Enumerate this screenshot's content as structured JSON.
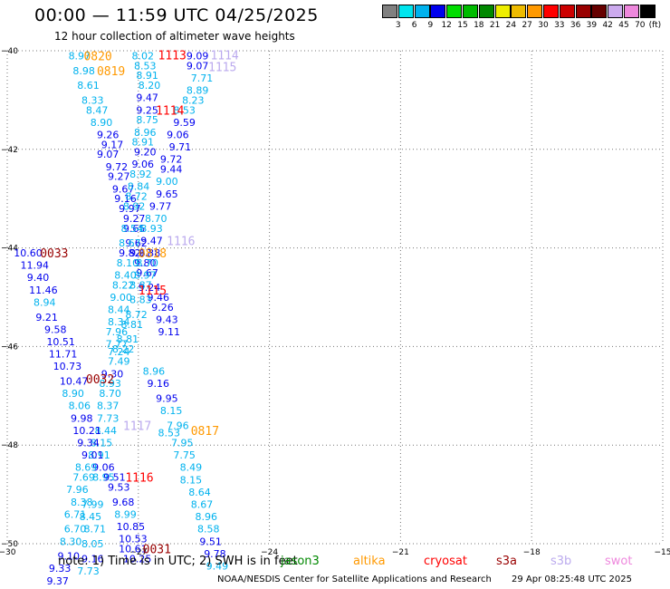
{
  "title": "00:00 — 11:59 UTC 04/25/2025",
  "subtitle": "12 hour collection of altimeter wave heights",
  "note": "note:  1) Time is in UTC;  2) SWH is in feet",
  "footer": "NOAA/NESDIS Center for Satellite Applications and Research",
  "timestamp": "29 Apr 08:25:48 UTC 2025",
  "colorbar": {
    "labels": [
      "3",
      "6",
      "9",
      "12",
      "15",
      "18",
      "21",
      "24",
      "27",
      "30",
      "33",
      "36",
      "39",
      "42",
      "45",
      "70"
    ],
    "unit": "(ft)",
    "colors": [
      "#808080",
      "#00e5ee",
      "#00b2ee",
      "#0000ee",
      "#00dd00",
      "#00bb00",
      "#008800",
      "#eeee00",
      "#eebb00",
      "#ff9900",
      "#ff0000",
      "#cc0000",
      "#990000",
      "#660000",
      "#ccaaee",
      "#ee88dd",
      "#000000"
    ]
  },
  "map": {
    "x_range": [
      -30,
      -15
    ],
    "y_range": [
      -50,
      -40
    ],
    "x_ticks": [
      -30,
      -27,
      -24,
      -21,
      -18,
      -15
    ],
    "y_ticks": [
      -40,
      -42,
      -44,
      -46,
      -48,
      -50
    ],
    "x_tick_labels": [
      "−30",
      "−27",
      "−24",
      "−21",
      "−18",
      "−15"
    ],
    "y_tick_labels": [
      "−40",
      "−42",
      "−44",
      "−46",
      "−48",
      "−50"
    ]
  },
  "satellites": [
    {
      "name": "jason3",
      "color": "#008800"
    },
    {
      "name": "altika",
      "color": "#ff9900"
    },
    {
      "name": "cryosat",
      "color": "#ff0000"
    },
    {
      "name": "s3a",
      "color": "#990000"
    },
    {
      "name": "s3b",
      "color": "#bbaaee"
    },
    {
      "name": "swot",
      "color": "#ee88dd"
    }
  ],
  "points": [
    {
      "lon": -28.6,
      "lat": -40.1,
      "v": "8.97",
      "c": "#00b2ee"
    },
    {
      "lon": -28.5,
      "lat": -40.4,
      "v": "8.98",
      "c": "#00b2ee"
    },
    {
      "lon": -28.4,
      "lat": -40.7,
      "v": "8.61",
      "c": "#00b2ee"
    },
    {
      "lon": -28.3,
      "lat": -41.0,
      "v": "8.33",
      "c": "#00b2ee"
    },
    {
      "lon": -28.2,
      "lat": -41.2,
      "v": "8.47",
      "c": "#00b2ee"
    },
    {
      "lon": -28.1,
      "lat": -41.45,
      "v": "8.90",
      "c": "#00b2ee"
    },
    {
      "lon": -27.95,
      "lat": -41.7,
      "v": "9.26",
      "c": "#0000ee"
    },
    {
      "lon": -27.85,
      "lat": -41.9,
      "v": "9.17",
      "c": "#0000ee"
    },
    {
      "lon": -27.95,
      "lat": -42.1,
      "v": "9.07",
      "c": "#0000ee"
    },
    {
      "lon": -27.75,
      "lat": -42.35,
      "v": "9.72",
      "c": "#0000ee"
    },
    {
      "lon": -27.7,
      "lat": -42.55,
      "v": "9.27",
      "c": "#0000ee"
    },
    {
      "lon": -27.6,
      "lat": -42.8,
      "v": "9.67",
      "c": "#0000ee"
    },
    {
      "lon": -27.55,
      "lat": -43.0,
      "v": "9.16",
      "c": "#0000ee"
    },
    {
      "lon": -27.45,
      "lat": -43.2,
      "v": "9.97",
      "c": "#0000ee"
    },
    {
      "lon": -27.35,
      "lat": -43.6,
      "v": "9.65",
      "c": "#0000ee"
    },
    {
      "lon": -27.3,
      "lat": -43.9,
      "v": "9.62",
      "c": "#0000ee"
    },
    {
      "lon": -27.2,
      "lat": -44.1,
      "v": "9.67",
      "c": "#0000ee"
    },
    {
      "lon": -27.1,
      "lat": -44.3,
      "v": "9.80",
      "c": "#0000ee"
    },
    {
      "lon": -27.05,
      "lat": -44.5,
      "v": "9.67",
      "c": "#0000ee"
    },
    {
      "lon": -27.0,
      "lat": -44.8,
      "v": "9.24",
      "c": "#0000ee"
    },
    {
      "lon": -26.8,
      "lat": -45.0,
      "v": "9.46",
      "c": "#0000ee"
    },
    {
      "lon": -26.7,
      "lat": -45.2,
      "v": "9.26",
      "c": "#0000ee"
    },
    {
      "lon": -26.6,
      "lat": -45.45,
      "v": "9.43",
      "c": "#0000ee"
    },
    {
      "lon": -26.55,
      "lat": -45.7,
      "v": "9.11",
      "c": "#0000ee"
    },
    {
      "lon": -27.15,
      "lat": -40.1,
      "v": "8.02",
      "c": "#00b2ee"
    },
    {
      "lon": -27.1,
      "lat": -40.3,
      "v": "8.53",
      "c": "#00b2ee"
    },
    {
      "lon": -27.05,
      "lat": -40.5,
      "v": "8.91",
      "c": "#00b2ee"
    },
    {
      "lon": -27.0,
      "lat": -40.7,
      "v": "8.20",
      "c": "#00b2ee"
    },
    {
      "lon": -27.05,
      "lat": -40.95,
      "v": "9.47",
      "c": "#0000ee"
    },
    {
      "lon": -27.05,
      "lat": -41.2,
      "v": "9.25",
      "c": "#0000ee"
    },
    {
      "lon": -27.05,
      "lat": -41.4,
      "v": "8.75",
      "c": "#00b2ee"
    },
    {
      "lon": -27.1,
      "lat": -41.65,
      "v": "8.96",
      "c": "#00b2ee"
    },
    {
      "lon": -27.15,
      "lat": -41.85,
      "v": "8.91",
      "c": "#00b2ee"
    },
    {
      "lon": -27.1,
      "lat": -42.05,
      "v": "9.20",
      "c": "#0000ee"
    },
    {
      "lon": -27.15,
      "lat": -42.3,
      "v": "9.06",
      "c": "#0000ee"
    },
    {
      "lon": -27.2,
      "lat": -42.5,
      "v": "8.92",
      "c": "#00b2ee"
    },
    {
      "lon": -27.25,
      "lat": -42.75,
      "v": "8.84",
      "c": "#00b2ee"
    },
    {
      "lon": -27.3,
      "lat": -42.95,
      "v": "8.72",
      "c": "#00b2ee"
    },
    {
      "lon": -27.35,
      "lat": -43.15,
      "v": "8.92",
      "c": "#00b2ee"
    },
    {
      "lon": -27.35,
      "lat": -43.4,
      "v": "9.27",
      "c": "#0000ee"
    },
    {
      "lon": -27.4,
      "lat": -43.6,
      "v": "8.54",
      "c": "#00b2ee"
    },
    {
      "lon": -27.45,
      "lat": -43.9,
      "v": "8.67",
      "c": "#00b2ee"
    },
    {
      "lon": -27.45,
      "lat": -44.1,
      "v": "9.82",
      "c": "#0000ee"
    },
    {
      "lon": -27.5,
      "lat": -44.3,
      "v": "8.10",
      "c": "#00b2ee"
    },
    {
      "lon": -27.55,
      "lat": -44.55,
      "v": "8.40",
      "c": "#00b2ee"
    },
    {
      "lon": -27.6,
      "lat": -44.75,
      "v": "8.22",
      "c": "#00b2ee"
    },
    {
      "lon": -27.65,
      "lat": -45.0,
      "v": "9.00",
      "c": "#00b2ee"
    },
    {
      "lon": -27.7,
      "lat": -45.25,
      "v": "8.44",
      "c": "#00b2ee"
    },
    {
      "lon": -27.7,
      "lat": -45.5,
      "v": "8.34",
      "c": "#00b2ee"
    },
    {
      "lon": -27.75,
      "lat": -45.7,
      "v": "7.96",
      "c": "#00b2ee"
    },
    {
      "lon": -27.75,
      "lat": -45.95,
      "v": "7.77",
      "c": "#00b2ee"
    },
    {
      "lon": -27.7,
      "lat": -46.1,
      "v": "7.24",
      "c": "#00b2ee"
    },
    {
      "lon": -27.7,
      "lat": -46.3,
      "v": "7.49",
      "c": "#00b2ee"
    },
    {
      "lon": -27.85,
      "lat": -46.55,
      "v": "9.30",
      "c": "#0000ee"
    },
    {
      "lon": -27.9,
      "lat": -46.75,
      "v": "8.93",
      "c": "#00b2ee"
    },
    {
      "lon": -27.9,
      "lat": -46.95,
      "v": "8.70",
      "c": "#00b2ee"
    },
    {
      "lon": -27.95,
      "lat": -47.2,
      "v": "8.37",
      "c": "#00b2ee"
    },
    {
      "lon": -27.95,
      "lat": -47.45,
      "v": "7.73",
      "c": "#00b2ee"
    },
    {
      "lon": -28.0,
      "lat": -47.7,
      "v": "8.44",
      "c": "#00b2ee"
    },
    {
      "lon": -28.1,
      "lat": -47.95,
      "v": "8.15",
      "c": "#00b2ee"
    },
    {
      "lon": -28.15,
      "lat": -48.2,
      "v": "8.91",
      "c": "#00b2ee"
    },
    {
      "lon": -28.05,
      "lat": -48.45,
      "v": "9.06",
      "c": "#0000ee"
    },
    {
      "lon": -28.05,
      "lat": -48.65,
      "v": "8.95",
      "c": "#00b2ee"
    },
    {
      "lon": -27.8,
      "lat": -48.65,
      "v": "9.51",
      "c": "#0000ee"
    },
    {
      "lon": -27.7,
      "lat": -48.85,
      "v": "9.53",
      "c": "#0000ee"
    },
    {
      "lon": -27.6,
      "lat": -49.15,
      "v": "9.68",
      "c": "#0000ee"
    },
    {
      "lon": -27.55,
      "lat": -49.4,
      "v": "8.99",
      "c": "#00b2ee"
    },
    {
      "lon": -27.5,
      "lat": -49.65,
      "v": "10.85",
      "c": "#0000ee"
    },
    {
      "lon": -27.45,
      "lat": -49.9,
      "v": "10.53",
      "c": "#0000ee"
    },
    {
      "lon": -27.45,
      "lat": -50.1,
      "v": "10.61",
      "c": "#0000ee"
    },
    {
      "lon": -27.35,
      "lat": -50.3,
      "v": "10.25",
      "c": "#0000ee"
    },
    {
      "lon": -29.85,
      "lat": -44.1,
      "v": "10.60",
      "c": "#0000ee"
    },
    {
      "lon": -29.7,
      "lat": -44.35,
      "v": "11.94",
      "c": "#0000ee"
    },
    {
      "lon": -29.55,
      "lat": -44.6,
      "v": "9.40",
      "c": "#0000ee"
    },
    {
      "lon": -29.5,
      "lat": -44.85,
      "v": "11.46",
      "c": "#0000ee"
    },
    {
      "lon": -29.4,
      "lat": -45.1,
      "v": "8.94",
      "c": "#00b2ee"
    },
    {
      "lon": -29.35,
      "lat": -45.4,
      "v": "9.21",
      "c": "#0000ee"
    },
    {
      "lon": -29.15,
      "lat": -45.65,
      "v": "9.58",
      "c": "#0000ee"
    },
    {
      "lon": -29.1,
      "lat": -45.9,
      "v": "10.51",
      "c": "#0000ee"
    },
    {
      "lon": -29.05,
      "lat": -46.15,
      "v": "11.71",
      "c": "#0000ee"
    },
    {
      "lon": -28.95,
      "lat": -46.4,
      "v": "10.73",
      "c": "#0000ee"
    },
    {
      "lon": -28.8,
      "lat": -46.7,
      "v": "10.47",
      "c": "#0000ee"
    },
    {
      "lon": -28.75,
      "lat": -46.95,
      "v": "8.90",
      "c": "#00b2ee"
    },
    {
      "lon": -28.6,
      "lat": -47.2,
      "v": "8.06",
      "c": "#00b2ee"
    },
    {
      "lon": -28.55,
      "lat": -47.45,
      "v": "9.98",
      "c": "#0000ee"
    },
    {
      "lon": -28.5,
      "lat": -47.7,
      "v": "10.21",
      "c": "#0000ee"
    },
    {
      "lon": -28.4,
      "lat": -47.95,
      "v": "9.34",
      "c": "#0000ee"
    },
    {
      "lon": -28.3,
      "lat": -48.2,
      "v": "9.01",
      "c": "#0000ee"
    },
    {
      "lon": -28.45,
      "lat": -48.45,
      "v": "8.69",
      "c": "#00b2ee"
    },
    {
      "lon": -28.5,
      "lat": -48.65,
      "v": "7.69",
      "c": "#00b2ee"
    },
    {
      "lon": -28.65,
      "lat": -48.9,
      "v": "7.96",
      "c": "#00b2ee"
    },
    {
      "lon": -28.55,
      "lat": -49.15,
      "v": "8.38",
      "c": "#00b2ee"
    },
    {
      "lon": -28.3,
      "lat": -49.2,
      "v": "7.99",
      "c": "#00b2ee"
    },
    {
      "lon": -28.7,
      "lat": -49.4,
      "v": "6.71",
      "c": "#00b2ee"
    },
    {
      "lon": -28.35,
      "lat": -49.45,
      "v": "8.45",
      "c": "#00b2ee"
    },
    {
      "lon": -28.7,
      "lat": -49.7,
      "v": "6.70",
      "c": "#00b2ee"
    },
    {
      "lon": -28.25,
      "lat": -49.7,
      "v": "8.71",
      "c": "#00b2ee"
    },
    {
      "lon": -28.8,
      "lat": -49.95,
      "v": "8.30",
      "c": "#00b2ee"
    },
    {
      "lon": -28.3,
      "lat": -50.0,
      "v": "8.05",
      "c": "#00b2ee"
    },
    {
      "lon": -28.85,
      "lat": -50.25,
      "v": "9.10",
      "c": "#0000ee"
    },
    {
      "lon": -28.3,
      "lat": -50.3,
      "v": "9.16",
      "c": "#0000ee"
    },
    {
      "lon": -29.05,
      "lat": -50.5,
      "v": "9.33",
      "c": "#0000ee"
    },
    {
      "lon": -28.4,
      "lat": -50.55,
      "v": "7.73",
      "c": "#00b2ee"
    },
    {
      "lon": -29.1,
      "lat": -50.75,
      "v": "9.37",
      "c": "#0000ee"
    },
    {
      "lon": -25.9,
      "lat": -40.1,
      "v": "9.09",
      "c": "#0000ee"
    },
    {
      "lon": -25.9,
      "lat": -40.3,
      "v": "9.07",
      "c": "#0000ee"
    },
    {
      "lon": -25.8,
      "lat": -40.55,
      "v": "7.71",
      "c": "#00b2ee"
    },
    {
      "lon": -25.9,
      "lat": -40.8,
      "v": "8.89",
      "c": "#00b2ee"
    },
    {
      "lon": -26.0,
      "lat": -41.0,
      "v": "8.23",
      "c": "#00b2ee"
    },
    {
      "lon": -26.2,
      "lat": -41.2,
      "v": "8.53",
      "c": "#00b2ee"
    },
    {
      "lon": -26.2,
      "lat": -41.45,
      "v": "9.59",
      "c": "#0000ee"
    },
    {
      "lon": -26.35,
      "lat": -41.7,
      "v": "9.06",
      "c": "#0000ee"
    },
    {
      "lon": -26.3,
      "lat": -41.95,
      "v": "9.71",
      "c": "#0000ee"
    },
    {
      "lon": -26.5,
      "lat": -42.2,
      "v": "9.72",
      "c": "#0000ee"
    },
    {
      "lon": -26.5,
      "lat": -42.4,
      "v": "9.44",
      "c": "#0000ee"
    },
    {
      "lon": -26.6,
      "lat": -42.65,
      "v": "9.00",
      "c": "#00b2ee"
    },
    {
      "lon": -26.6,
      "lat": -42.9,
      "v": "9.65",
      "c": "#0000ee"
    },
    {
      "lon": -26.75,
      "lat": -43.15,
      "v": "9.77",
      "c": "#0000ee"
    },
    {
      "lon": -26.85,
      "lat": -43.4,
      "v": "8.70",
      "c": "#00b2ee"
    },
    {
      "lon": -26.95,
      "lat": -43.6,
      "v": "8.93",
      "c": "#00b2ee"
    },
    {
      "lon": -26.95,
      "lat": -43.85,
      "v": "9.47",
      "c": "#0000ee"
    },
    {
      "lon": -27.0,
      "lat": -44.1,
      "v": "9.38",
      "c": "#0000ee"
    },
    {
      "lon": -27.05,
      "lat": -44.3,
      "v": "8.70",
      "c": "#00b2ee"
    },
    {
      "lon": -27.1,
      "lat": -44.55,
      "v": "8.97",
      "c": "#00b2ee"
    },
    {
      "lon": -27.2,
      "lat": -44.75,
      "v": "8.87",
      "c": "#00b2ee"
    },
    {
      "lon": -27.2,
      "lat": -45.05,
      "v": "8.83",
      "c": "#00b2ee"
    },
    {
      "lon": -27.3,
      "lat": -45.35,
      "v": "8.72",
      "c": "#00b2ee"
    },
    {
      "lon": -27.4,
      "lat": -45.55,
      "v": "8.81",
      "c": "#00b2ee"
    },
    {
      "lon": -27.5,
      "lat": -45.85,
      "v": "8.81",
      "c": "#00b2ee"
    },
    {
      "lon": -27.6,
      "lat": -46.05,
      "v": "8.22",
      "c": "#00b2ee"
    },
    {
      "lon": -26.9,
      "lat": -46.5,
      "v": "8.96",
      "c": "#00b2ee"
    },
    {
      "lon": -26.8,
      "lat": -46.75,
      "v": "9.16",
      "c": "#0000ee"
    },
    {
      "lon": -26.6,
      "lat": -47.05,
      "v": "9.95",
      "c": "#0000ee"
    },
    {
      "lon": -26.5,
      "lat": -47.3,
      "v": "8.15",
      "c": "#00b2ee"
    },
    {
      "lon": -26.35,
      "lat": -47.6,
      "v": "7.96",
      "c": "#00b2ee"
    },
    {
      "lon": -26.55,
      "lat": -47.75,
      "v": "8.53",
      "c": "#00b2ee"
    },
    {
      "lon": -26.25,
      "lat": -47.95,
      "v": "7.95",
      "c": "#00b2ee"
    },
    {
      "lon": -26.2,
      "lat": -48.2,
      "v": "7.75",
      "c": "#00b2ee"
    },
    {
      "lon": -26.05,
      "lat": -48.45,
      "v": "8.49",
      "c": "#00b2ee"
    },
    {
      "lon": -26.05,
      "lat": -48.7,
      "v": "8.15",
      "c": "#00b2ee"
    },
    {
      "lon": -25.85,
      "lat": -48.95,
      "v": "8.64",
      "c": "#00b2ee"
    },
    {
      "lon": -25.8,
      "lat": -49.2,
      "v": "8.67",
      "c": "#00b2ee"
    },
    {
      "lon": -25.7,
      "lat": -49.45,
      "v": "8.96",
      "c": "#00b2ee"
    },
    {
      "lon": -25.65,
      "lat": -49.7,
      "v": "8.58",
      "c": "#00b2ee"
    },
    {
      "lon": -25.6,
      "lat": -49.95,
      "v": "9.51",
      "c": "#0000ee"
    },
    {
      "lon": -25.5,
      "lat": -50.2,
      "v": "9.78",
      "c": "#0000ee"
    },
    {
      "lon": -25.45,
      "lat": -50.45,
      "v": "9.49",
      "c": "#00b2ee"
    }
  ],
  "time_labels": [
    {
      "lon": -28.25,
      "lat": -40.1,
      "t": "0820",
      "c": "#ff9900"
    },
    {
      "lon": -27.95,
      "lat": -40.4,
      "t": "0819",
      "c": "#ff9900"
    },
    {
      "lon": -26.55,
      "lat": -40.08,
      "t": "1113",
      "c": "#ff0000"
    },
    {
      "lon": -25.35,
      "lat": -40.08,
      "t": "1114",
      "c": "#bbaaee"
    },
    {
      "lon": -25.4,
      "lat": -40.32,
      "t": "1115",
      "c": "#bbaaee"
    },
    {
      "lon": -26.6,
      "lat": -41.2,
      "t": "1114",
      "c": "#ff0000"
    },
    {
      "lon": -26.35,
      "lat": -43.85,
      "t": "1116",
      "c": "#bbaaee"
    },
    {
      "lon": -29.25,
      "lat": -44.1,
      "t": "0033",
      "c": "#990000"
    },
    {
      "lon": -27.0,
      "lat": -44.1,
      "t": "0818",
      "c": "#ff9900"
    },
    {
      "lon": -27.0,
      "lat": -44.85,
      "t": "1115",
      "c": "#ff0000"
    },
    {
      "lon": -28.2,
      "lat": -46.65,
      "t": "0032",
      "c": "#990000"
    },
    {
      "lon": -27.35,
      "lat": -47.6,
      "t": "1117",
      "c": "#bbaaee"
    },
    {
      "lon": -25.8,
      "lat": -47.7,
      "t": "0817",
      "c": "#ff9900"
    },
    {
      "lon": -27.3,
      "lat": -48.65,
      "t": "1116",
      "c": "#ff0000"
    },
    {
      "lon": -26.9,
      "lat": -50.1,
      "t": "0031",
      "c": "#990000"
    }
  ]
}
